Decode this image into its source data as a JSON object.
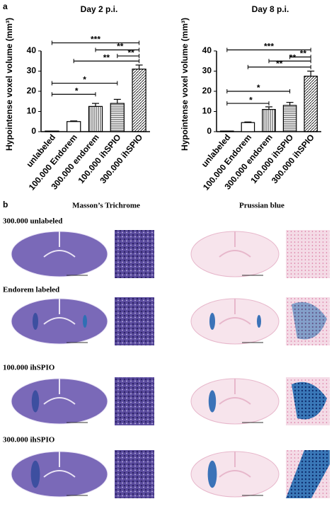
{
  "chart_data": [
    {
      "type": "bar",
      "title": "Day 2 p.i.",
      "ylabel": "Hypointense voxel volume (mm³)",
      "categories": [
        "unlabeled",
        "100.000 Endorem",
        "300.000 endorem",
        "100.000 ihSPIO",
        "300.000 ihSPIO"
      ],
      "values": [
        0.3,
        5,
        12.5,
        14,
        31
      ],
      "errors": [
        0,
        0.3,
        1.5,
        2,
        2
      ],
      "hatches": [
        "none",
        "none",
        "vertical",
        "horizontal",
        "diagonal"
      ],
      "color": "#000",
      "ylim": [
        0,
        47
      ],
      "yticks": [
        0,
        10,
        20,
        30,
        40
      ],
      "annotations": [
        {
          "text": "***",
          "from": "unlabeled",
          "to": "300.000 ihSPIO",
          "y": 44
        },
        {
          "text": "**",
          "from": "300.000 endorem",
          "to": "300.000 ihSPIO",
          "y": 40.5
        },
        {
          "text": "**",
          "from": "100.000 ihSPIO",
          "to": "300.000 ihSPIO",
          "y": 37.5
        },
        {
          "text": "**",
          "from": "100.000 Endorem",
          "to": "300.000 ihSPIO",
          "y": 35
        },
        {
          "text": "*",
          "from": "unlabeled",
          "to": "100.000 ihSPIO",
          "y": 24
        },
        {
          "text": "*",
          "from": "unlabeled",
          "to": "300.000 endorem",
          "y": 18.5
        }
      ]
    },
    {
      "type": "bar",
      "title": "Day 8 p.i.",
      "ylabel": "Hypointense voxel volume (mm³)",
      "categories": [
        "unlabeled",
        "100.000 Endorem",
        "300.000 endorem",
        "100.000 ihSPIO",
        "300.000 ihSPIO"
      ],
      "values": [
        0.3,
        4.5,
        11,
        13,
        27.5
      ],
      "errors": [
        0,
        0.3,
        1.3,
        1.5,
        2.5
      ],
      "hatches": [
        "none",
        "none",
        "vertical",
        "horizontal",
        "diagonal"
      ],
      "color": "#000",
      "ylim": [
        0,
        47
      ],
      "yticks": [
        0,
        10,
        20,
        30,
        40
      ],
      "annotations": [
        {
          "text": "***",
          "from": "unlabeled",
          "to": "300.000 ihSPIO",
          "y": 40.5
        },
        {
          "text": "**",
          "from": "100.000 ihSPIO",
          "to": "300.000 ihSPIO",
          "y": 37
        },
        {
          "text": "**",
          "from": "300.000 endorem",
          "to": "300.000 ihSPIO",
          "y": 35
        },
        {
          "text": "**",
          "from": "100.000 Endorem",
          "to": "300.000 ihSPIO",
          "y": 32
        },
        {
          "text": "*",
          "from": "unlabeled",
          "to": "100.000 ihSPIO",
          "y": 20
        },
        {
          "text": "*",
          "from": "unlabeled",
          "to": "300.000 endorem",
          "y": 14
        }
      ]
    }
  ],
  "figure": {
    "panel_a": "a",
    "panel_b": "b",
    "col1": "Masson’s Trichrome",
    "col2": "Prussian blue",
    "rows": [
      "300.000 unlabeled",
      "Endorem labeled",
      "100.000 ihSPIO",
      "300.000 ihSPIO"
    ]
  }
}
